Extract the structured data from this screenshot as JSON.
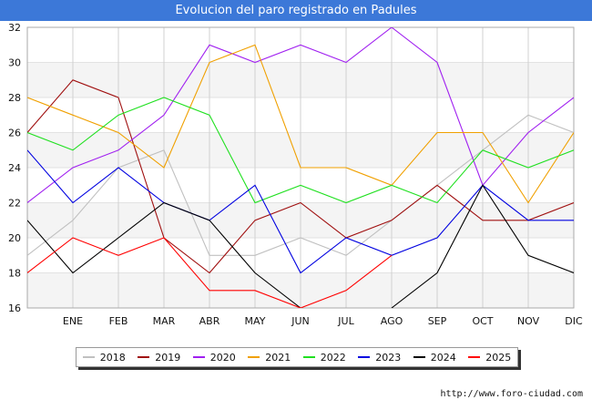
{
  "header": {
    "title": "Evolucion del paro registrado en Padules"
  },
  "footer": {
    "source": "http://www.foro-ciudad.com"
  },
  "chart_data": {
    "type": "line",
    "title": "Evolucion del paro registrado en Padules",
    "categories": [
      "",
      "ENE",
      "FEB",
      "MAR",
      "ABR",
      "MAY",
      "JUN",
      "JUL",
      "AGO",
      "SEP",
      "OCT",
      "NOV",
      "DIC"
    ],
    "ylim": [
      16,
      32
    ],
    "yticks": [
      16,
      18,
      20,
      22,
      24,
      26,
      28,
      30,
      32
    ],
    "grid": true,
    "legend_position": "bottom",
    "series": [
      {
        "name": "2018",
        "color": "#c0c0c0",
        "values": [
          19,
          21,
          24,
          25,
          19,
          19,
          20,
          19,
          21,
          23,
          25,
          27,
          26
        ]
      },
      {
        "name": "2019",
        "color": "#a01010",
        "values": [
          26,
          29,
          28,
          20,
          18,
          21,
          22,
          20,
          21,
          23,
          21,
          21,
          22
        ]
      },
      {
        "name": "2020",
        "color": "#a020f0",
        "values": [
          22,
          24,
          25,
          27,
          31,
          30,
          31,
          30,
          32,
          30,
          23,
          26,
          28
        ]
      },
      {
        "name": "2021",
        "color": "#f0a000",
        "values": [
          28,
          27,
          26,
          24,
          30,
          31,
          24,
          24,
          23,
          26,
          26,
          22,
          26
        ]
      },
      {
        "name": "2022",
        "color": "#20e020",
        "values": [
          26,
          25,
          27,
          28,
          27,
          22,
          23,
          22,
          23,
          22,
          25,
          24,
          25
        ]
      },
      {
        "name": "2023",
        "color": "#0000e0",
        "values": [
          25,
          22,
          24,
          22,
          21,
          23,
          18,
          20,
          19,
          20,
          23,
          21,
          21
        ]
      },
      {
        "name": "2024",
        "color": "#000000",
        "values": [
          21,
          18,
          20,
          22,
          21,
          18,
          16,
          null,
          16,
          18,
          23,
          19,
          18
        ]
      },
      {
        "name": "2025",
        "color": "#ff0000",
        "values": [
          18,
          20,
          19,
          20,
          17,
          17,
          16,
          17,
          19,
          null,
          null,
          null,
          null
        ]
      }
    ]
  }
}
